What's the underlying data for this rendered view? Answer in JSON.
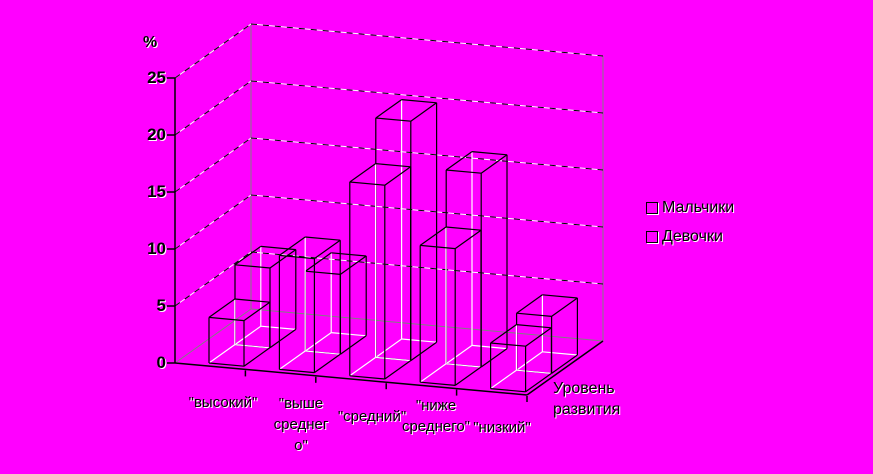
{
  "chart_data": {
    "type": "bar",
    "projection": "3d-column",
    "background_color": "#FF00FF",
    "line_color": "#000000",
    "hidden_edge_color": "#FFFFFF",
    "wall_edge_color": "#808080",
    "value_axis": {
      "label": "%",
      "min": 0,
      "max": 25,
      "step": 5,
      "ticks": [
        0,
        5,
        10,
        15,
        20,
        25
      ]
    },
    "category_axis": {
      "title_lines": [
        "Уровень",
        "развития"
      ],
      "categories": [
        "\"высокий\"",
        "\"выше среднего\"",
        "\"средний\"",
        "\"ниже среднего\"",
        "\"низкий\""
      ],
      "category_label_lines": [
        [
          "\"высокий\""
        ],
        [
          "\"выше",
          "среднег",
          "о\""
        ],
        [
          "\"средний\""
        ],
        [
          "\"ниже",
          "среднего\""
        ],
        [
          "\"низкий\""
        ]
      ]
    },
    "series": [
      {
        "name": "Мальчики",
        "values": [
          4,
          10,
          17,
          12,
          4
        ]
      },
      {
        "name": "Девочки",
        "values": [
          7,
          7,
          21,
          17,
          5
        ]
      }
    ],
    "legend_position": "right",
    "grid": true
  }
}
